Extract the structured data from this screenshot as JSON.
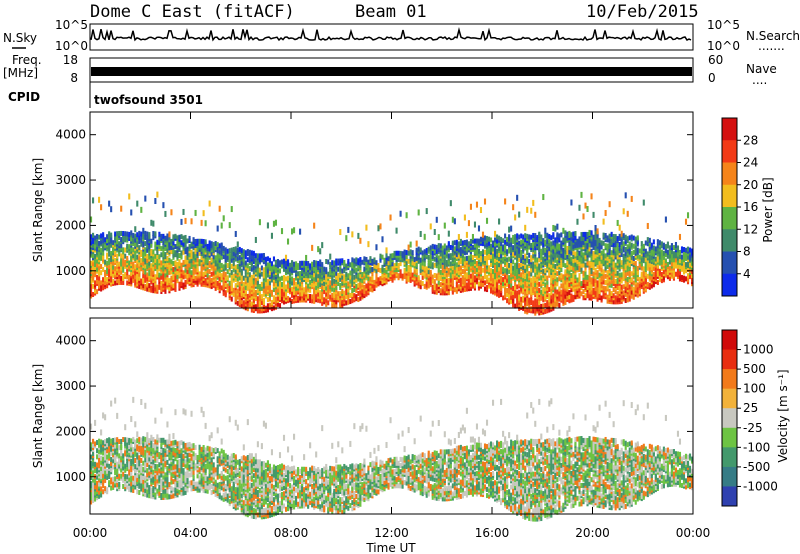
{
  "header": {
    "title": "Dome C East (fitACF)",
    "beam": "Beam 01",
    "date": "10/Feb/2015"
  },
  "strips": {
    "nsky_label": "N.Sky",
    "nsearch_label": "N.Search",
    "nsearch_dots": ".......",
    "nsky_ticks": [
      "10^5",
      "10^0"
    ],
    "nsearch_ticks": [
      "10^5",
      "10^0"
    ],
    "freq_label": "Freq.",
    "freq_unit": "[MHz]",
    "freq_ticks": [
      "18",
      "8"
    ],
    "nave_label": "Nave",
    "nave_dots": "....",
    "nave_ticks": [
      "60",
      "0"
    ],
    "cpid_label": "CPID",
    "cpid_value": "twofsound 3501"
  },
  "chart_data": [
    {
      "type": "heatmap",
      "name": "power-panel",
      "ylabel": "Slant Range [km]",
      "yticks": [
        "1000",
        "2000",
        "3000",
        "4000"
      ],
      "ylim": [
        180,
        4500
      ],
      "xlim": [
        0,
        24
      ],
      "colorbar": {
        "label": "Power [dB]",
        "ticks": [
          "28",
          "24",
          "20",
          "16",
          "12",
          "8",
          "4"
        ],
        "colors": [
          "#0d2bea",
          "#2550b0",
          "#3f8a6a",
          "#5fb342",
          "#f2bd1e",
          "#f5841a",
          "#f23a16",
          "#d41010"
        ]
      }
    },
    {
      "type": "heatmap",
      "name": "velocity-panel",
      "ylabel": "Slant Range [km]",
      "yticks": [
        "1000",
        "2000",
        "3000",
        "4000"
      ],
      "ylim": [
        180,
        4500
      ],
      "xlim": [
        0,
        24
      ],
      "colorbar": {
        "label": "Velocity [m s⁻¹]",
        "ticks": [
          "1000",
          "500",
          "100",
          "25",
          "-25",
          "-100",
          "-500",
          "-1000"
        ],
        "colors": [
          "#2f41b0",
          "#367c86",
          "#43996c",
          "#6dc443",
          "#c8c8c0",
          "#f2b23a",
          "#f27a1a",
          "#e82e10",
          "#d00a0a"
        ]
      }
    }
  ],
  "xaxis": {
    "ticks": [
      "00:00",
      "04:00",
      "08:00",
      "12:00",
      "16:00",
      "20:00",
      "00:00"
    ],
    "label": "Time UT"
  }
}
